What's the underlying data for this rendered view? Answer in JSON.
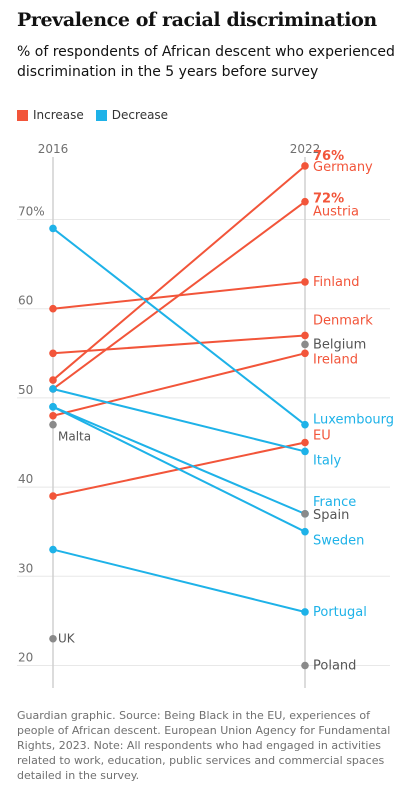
{
  "title": "Prevalence of racial discrimination",
  "subtitle": "% of respondents of African descent who experienced discrimination in the 5 years before survey",
  "legend": {
    "increase": {
      "label": "Increase",
      "color": "#f2553a"
    },
    "decrease": {
      "label": "Decrease",
      "color": "#1eb2e8"
    }
  },
  "colors": {
    "neutral": "#8a8a8a",
    "axis": "#d0d0d0",
    "grid": "#e8e8e8"
  },
  "source": "Guardian graphic. Source: Being Black in the EU, experiences of people of African descent. European Union Agency for Fundamental Rights, 2023. Note: All respondents who had engaged in activities related to work, education, public services and commercial spaces detailed in the survey.",
  "chart_data": {
    "type": "line",
    "subtype": "slope",
    "x": [
      "2016",
      "2022"
    ],
    "ylim": [
      18,
      78
    ],
    "y_ticks": [
      20,
      30,
      40,
      50,
      60,
      70
    ],
    "y_tick_labels": [
      "20",
      "30",
      "40",
      "50",
      "60",
      "70%"
    ],
    "grid": true,
    "legend_position": "top-left",
    "series": [
      {
        "name": "Germany",
        "values": [
          52,
          76
        ],
        "trend": "increase",
        "label": "Germany",
        "value_label": "76%"
      },
      {
        "name": "Austria",
        "values": [
          51,
          72
        ],
        "trend": "increase",
        "label": "Austria",
        "value_label": "72%"
      },
      {
        "name": "Finland",
        "values": [
          60,
          63
        ],
        "trend": "increase",
        "label": "Finland"
      },
      {
        "name": "Denmark",
        "values": [
          55,
          57
        ],
        "trend": "increase",
        "label": "Denmark"
      },
      {
        "name": "Ireland",
        "values": [
          48,
          55
        ],
        "trend": "increase",
        "label": "Ireland"
      },
      {
        "name": "EU",
        "values": [
          39,
          45
        ],
        "trend": "increase",
        "label": "EU"
      },
      {
        "name": "Luxembourg",
        "values": [
          69,
          47
        ],
        "trend": "decrease",
        "label": "Luxembourg"
      },
      {
        "name": "Italy",
        "values": [
          51,
          44
        ],
        "trend": "decrease",
        "label": "Italy"
      },
      {
        "name": "France",
        "values": [
          49,
          37
        ],
        "trend": "decrease",
        "label": "France"
      },
      {
        "name": "Sweden",
        "values": [
          49,
          35
        ],
        "trend": "decrease",
        "label": "Sweden"
      },
      {
        "name": "Portugal",
        "values": [
          33,
          26
        ],
        "trend": "decrease",
        "label": "Portugal"
      },
      {
        "name": "Belgium",
        "values": [
          null,
          56
        ],
        "trend": "none",
        "label": "Belgium"
      },
      {
        "name": "Spain",
        "values": [
          null,
          37
        ],
        "trend": "none",
        "label": "Spain"
      },
      {
        "name": "Poland",
        "values": [
          null,
          20
        ],
        "trend": "none",
        "label": "Poland"
      },
      {
        "name": "Malta",
        "values": [
          47,
          null
        ],
        "trend": "none",
        "label": "Malta"
      },
      {
        "name": "UK",
        "values": [
          23,
          null
        ],
        "trend": "none",
        "label": "UK"
      }
    ]
  }
}
